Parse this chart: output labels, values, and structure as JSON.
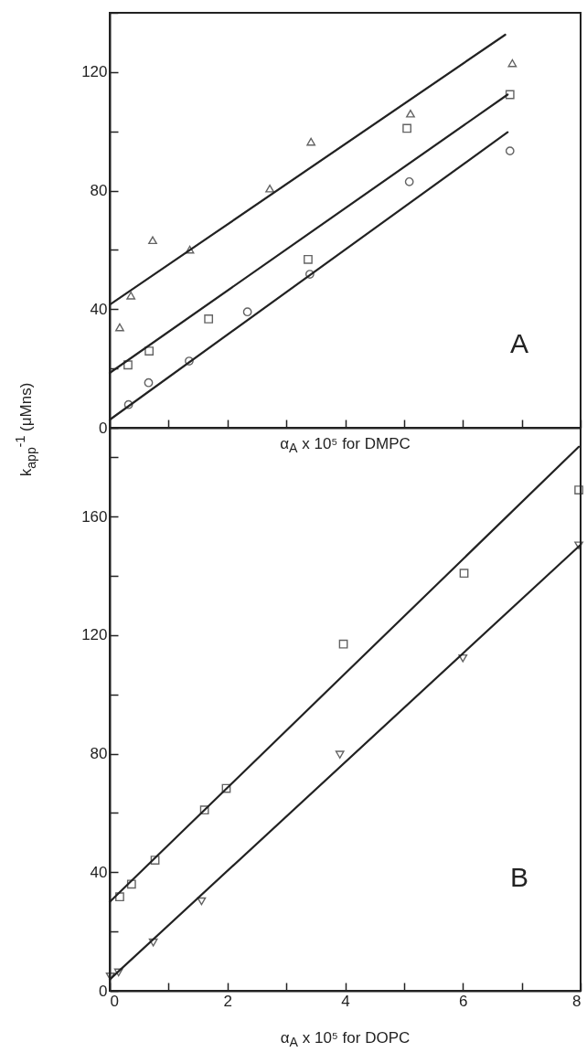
{
  "chart_data": [
    {
      "type": "scatter",
      "xlabel": "α$_{A}$ x 10⁵ for DMPC",
      "ylabel": "k$_{app}$$^{-1}$ (μMns)",
      "annotations": [
        "A"
      ],
      "xlim": [
        0,
        8
      ],
      "ylim": [
        0,
        140
      ],
      "xticks": [
        {
          "value": 0,
          "label": null
        },
        {
          "value": 1,
          "label": null
        },
        {
          "value": 2,
          "label": null
        },
        {
          "value": 3,
          "label": null
        },
        {
          "value": 4,
          "label": null
        },
        {
          "value": 5,
          "label": null
        },
        {
          "value": 6,
          "label": null
        },
        {
          "value": 7,
          "label": null
        },
        {
          "value": 8,
          "label": null
        }
      ],
      "yticks": [
        0,
        {
          "value": 20,
          "label": null
        },
        40,
        {
          "value": 60,
          "label": null
        },
        80,
        {
          "value": 100,
          "label": null
        },
        120,
        {
          "value": 140,
          "label": null
        }
      ],
      "tick_labels": "y",
      "series": [
        {
          "color": "#222222",
          "marker": "triangle",
          "x": [
            0.17,
            0.36,
            0.73,
            1.36,
            2.72,
            3.42,
            5.11,
            6.84
          ],
          "values": [
            33.9,
            44.6,
            63.3,
            60.1,
            80.7,
            96.5,
            106,
            123
          ]
        },
        {
          "color": "#222222",
          "marker": "square",
          "x": [
            0.31,
            0.67,
            1.68,
            3.37,
            5.05,
            6.8
          ],
          "values": [
            21.2,
            25.9,
            36.7,
            56.8,
            101,
            112.4
          ]
        },
        {
          "color": "#222222",
          "marker": "circle",
          "x": [
            0.32,
            0.66,
            1.35,
            2.34,
            3.4,
            5.09,
            6.8
          ],
          "values": [
            7.8,
            15.2,
            22.5,
            39.1,
            51.8,
            83,
            93.4
          ]
        },
        {
          "type": "line",
          "color": "#222222",
          "x": [
            0,
            6.72
          ],
          "values": [
            41.5,
            132.6
          ]
        },
        {
          "type": "line",
          "color": "#222222",
          "x": [
            0,
            6.76
          ],
          "values": [
            18.5,
            112.4
          ]
        },
        {
          "type": "line",
          "color": "#222222",
          "x": [
            0,
            6.76
          ],
          "values": [
            2.7,
            99.7
          ]
        }
      ]
    },
    {
      "type": "scatter",
      "xlabel": "α$_{A}$ x 10⁵ for DOPC",
      "annotations": [
        "B"
      ],
      "xlim": [
        0,
        8
      ],
      "ylim": [
        0,
        190
      ],
      "xticks": [
        0,
        {
          "value": 1,
          "label": null
        },
        2,
        {
          "value": 3,
          "label": null
        },
        4,
        {
          "value": 5,
          "label": null
        },
        6,
        {
          "value": 7,
          "label": null
        },
        8
      ],
      "yticks": [
        0,
        {
          "value": 20,
          "label": null
        },
        40,
        {
          "value": 60,
          "label": null
        },
        80,
        {
          "value": 100,
          "label": null
        },
        120,
        {
          "value": 140,
          "label": null
        },
        160,
        {
          "value": 180,
          "label": null
        }
      ],
      "series": [
        {
          "color": "#222222",
          "marker": "square",
          "x": [
            0.17,
            0.37,
            0.77,
            1.61,
            1.98,
            3.97,
            6.02,
            7.97
          ],
          "values": [
            31.7,
            36,
            44.1,
            61,
            68.3,
            117,
            140.9,
            169
          ]
        },
        {
          "color": "#222222",
          "marker": "triangle-down",
          "x": [
            0.01,
            0.15,
            0.74,
            1.56,
            3.91,
            6.0,
            7.97
          ],
          "values": [
            4.8,
            6.2,
            16.3,
            30.2,
            79.7,
            112.2,
            150.3
          ]
        },
        {
          "type": "line",
          "color": "#222222",
          "x": [
            0,
            7.97
          ],
          "values": [
            30,
            183.6
          ]
        },
        {
          "type": "line",
          "color": "#222222",
          "x": [
            0,
            8
          ],
          "values": [
            3.8,
            150.5
          ]
        }
      ]
    }
  ]
}
